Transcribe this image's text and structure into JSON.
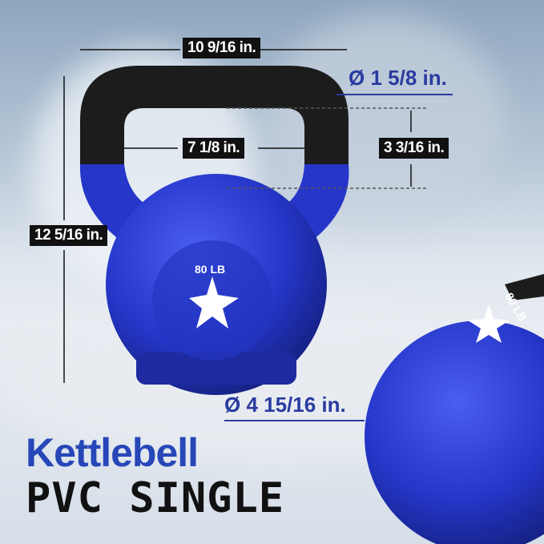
{
  "product": {
    "weight_label": "80 LB",
    "title_line1": "Kettlebell",
    "title_line2": "PVC SINGLE"
  },
  "dimensions": {
    "overall_width": "10 9/16 in.",
    "handle_diameter": "Ø 1 5/8 in.",
    "handle_inner_width": "7 1/8 in.",
    "handle_inner_height": "3 3/16 in.",
    "overall_height": "12 5/16 in.",
    "base_diameter": "Ø 4 15/16 in."
  },
  "colors": {
    "accent_blue": "#2747b8",
    "kettlebell_blue": "#2536c9",
    "handle_black": "#1a1a1a"
  }
}
